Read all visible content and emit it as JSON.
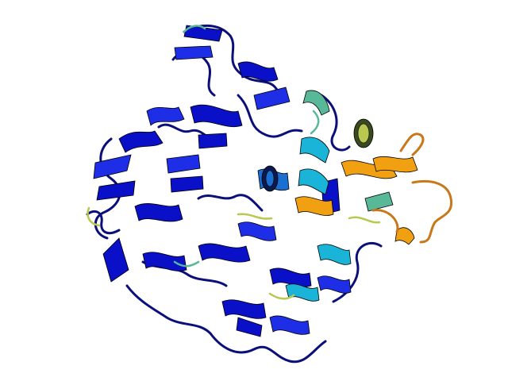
{
  "image": {
    "subject": "protein-cartoon-ribbon",
    "colors": {
      "background": "#ffffff",
      "core_blue": "#0a10c8",
      "core_blue_light": "#1e2ee6",
      "navy_loop": "#0a0f7a",
      "medium_blue": "#1a6fd0",
      "cyan": "#1ab4d8",
      "teal_green": "#58b898",
      "yellow_green": "#b8c850",
      "orange": "#f0a010",
      "dark_orange": "#c87818",
      "outline": "#000000"
    }
  }
}
